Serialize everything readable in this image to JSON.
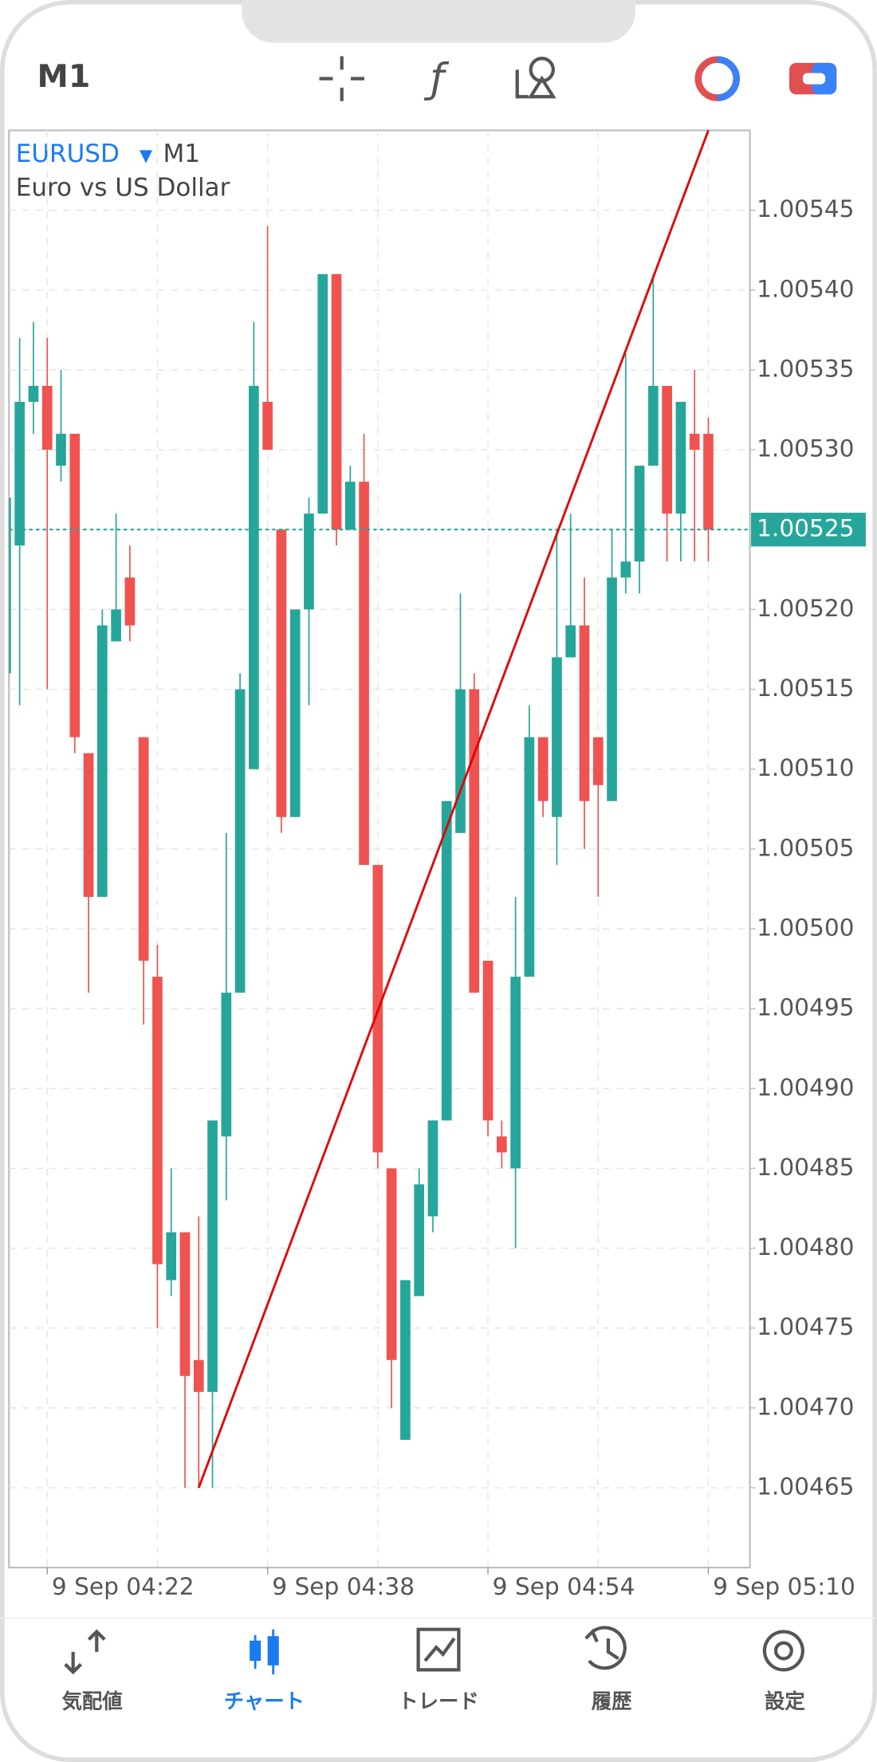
{
  "header": {
    "timeframe": "M1"
  },
  "chart_data": {
    "type": "candlestick",
    "symbol": "EURUSD",
    "timeframe": "M1",
    "description": "Euro vs US Dollar",
    "x": [
      "9 Sep 04:19",
      "9 Sep 04:20",
      "9 Sep 04:21",
      "9 Sep 04:22",
      "9 Sep 04:23",
      "9 Sep 04:24",
      "9 Sep 04:25",
      "9 Sep 04:26",
      "9 Sep 04:27",
      "9 Sep 04:28",
      "9 Sep 04:29",
      "9 Sep 04:30",
      "9 Sep 04:31",
      "9 Sep 04:32",
      "9 Sep 04:33",
      "9 Sep 04:34",
      "9 Sep 04:35",
      "9 Sep 04:36",
      "9 Sep 04:37",
      "9 Sep 04:38",
      "9 Sep 04:39",
      "9 Sep 04:40",
      "9 Sep 04:41",
      "9 Sep 04:42",
      "9 Sep 04:43",
      "9 Sep 04:44",
      "9 Sep 04:45",
      "9 Sep 04:46",
      "9 Sep 04:47",
      "9 Sep 04:48",
      "9 Sep 04:49",
      "9 Sep 04:50",
      "9 Sep 04:51",
      "9 Sep 04:52",
      "9 Sep 04:53",
      "9 Sep 04:54",
      "9 Sep 04:55",
      "9 Sep 04:56",
      "9 Sep 04:57",
      "9 Sep 04:58",
      "9 Sep 04:59",
      "9 Sep 05:00",
      "9 Sep 05:01",
      "9 Sep 05:02",
      "9 Sep 05:03",
      "9 Sep 05:04",
      "9 Sep 05:05",
      "9 Sep 05:06",
      "9 Sep 05:07",
      "9 Sep 05:08",
      "9 Sep 05:09",
      "9 Sep 05:10"
    ],
    "open": [
      1.00516,
      1.00524,
      1.00533,
      1.00534,
      1.00529,
      1.00531,
      1.00511,
      1.00502,
      1.00518,
      1.00522,
      1.00512,
      1.00497,
      1.00478,
      1.00481,
      1.00473,
      1.00471,
      1.00487,
      1.00496,
      1.0051,
      1.00533,
      1.00525,
      1.00507,
      1.0052,
      1.00526,
      1.00541,
      1.00525,
      1.00528,
      1.00504,
      1.00485,
      1.00468,
      1.00477,
      1.00482,
      1.00488,
      1.00506,
      1.00515,
      1.00498,
      1.00487,
      1.00485,
      1.00497,
      1.00512,
      1.00507,
      1.00517,
      1.00519,
      1.00512,
      1.00508,
      1.00522,
      1.00523,
      1.00529,
      1.00534,
      1.00526,
      1.00531,
      1.00531
    ],
    "high": [
      1.00528,
      1.00537,
      1.00538,
      1.00537,
      1.00535,
      1.00531,
      1.00511,
      1.0052,
      1.00526,
      1.00524,
      1.00512,
      1.00499,
      1.00485,
      1.00481,
      1.00482,
      1.00488,
      1.00506,
      1.00516,
      1.00538,
      1.00544,
      1.00525,
      1.0052,
      1.00527,
      1.00541,
      1.00541,
      1.00529,
      1.00531,
      1.00504,
      1.00485,
      1.00478,
      1.00485,
      1.00488,
      1.00508,
      1.00521,
      1.00516,
      1.00498,
      1.00488,
      1.00502,
      1.00514,
      1.00512,
      1.00525,
      1.00526,
      1.00522,
      1.00512,
      1.00525,
      1.00536,
      1.00529,
      1.00541,
      1.00534,
      1.00533,
      1.00535,
      1.00532
    ],
    "low": [
      1.00515,
      1.00514,
      1.00531,
      1.00515,
      1.00528,
      1.00511,
      1.00496,
      1.00502,
      1.00518,
      1.00518,
      1.00494,
      1.00475,
      1.00477,
      1.00465,
      1.00465,
      1.00465,
      1.00483,
      1.00496,
      1.0051,
      1.0053,
      1.00506,
      1.00507,
      1.00514,
      1.00526,
      1.00524,
      1.00525,
      1.00504,
      1.00485,
      1.0047,
      1.00468,
      1.00477,
      1.00481,
      1.00488,
      1.00506,
      1.00496,
      1.00487,
      1.00485,
      1.0048,
      1.00497,
      1.00507,
      1.00504,
      1.00517,
      1.00505,
      1.00502,
      1.00508,
      1.00521,
      1.00521,
      1.00529,
      1.00523,
      1.00523,
      1.00523,
      1.00523
    ],
    "close": [
      1.00527,
      1.00533,
      1.00534,
      1.0053,
      1.00531,
      1.00512,
      1.00502,
      1.00519,
      1.0052,
      1.00519,
      1.00498,
      1.00479,
      1.00481,
      1.00472,
      1.00471,
      1.00488,
      1.00496,
      1.00515,
      1.00534,
      1.0053,
      1.00507,
      1.0052,
      1.00526,
      1.00541,
      1.00525,
      1.00528,
      1.00504,
      1.00486,
      1.00473,
      1.00478,
      1.00484,
      1.00488,
      1.00508,
      1.00515,
      1.00496,
      1.00488,
      1.00486,
      1.00497,
      1.00512,
      1.00508,
      1.00517,
      1.00519,
      1.00508,
      1.00509,
      1.00522,
      1.00523,
      1.00529,
      1.00534,
      1.00526,
      1.00533,
      1.0053,
      1.00525
    ],
    "up_color": "#26a69a",
    "down_color": "#ef5350",
    "current_price": 1.00525,
    "trend_line": {
      "x": [
        "9 Sep 04:33",
        "9 Sep 05:10"
      ],
      "y": [
        1.00465,
        1.0055
      ],
      "color": "#e00000"
    },
    "ylim": [
      1.0046,
      1.0055
    ],
    "yticks": [
      1.00465,
      {
        "value": 1.0047,
        "label": "1.00470"
      },
      1.00475,
      {
        "value": 1.0048,
        "label": "1.00480"
      },
      1.00485,
      {
        "value": 1.0049,
        "label": "1.00490"
      },
      1.00495,
      {
        "value": 1.005,
        "label": "1.00500"
      },
      1.00505,
      {
        "value": 1.0051,
        "label": "1.00510"
      },
      1.00515,
      {
        "value": 1.0052,
        "label": "1.00520"
      },
      1.00525,
      {
        "value": 1.0053,
        "label": "1.00530"
      },
      1.00535,
      {
        "value": 1.0054,
        "label": "1.00540"
      },
      1.00545
    ],
    "xticks": [
      "9 Sep 04:22",
      "9 Sep 04:38",
      "9 Sep 04:54",
      "9 Sep 05:10"
    ],
    "grid": true
  },
  "tabs": [
    {
      "label": "気配値"
    },
    {
      "label": "チャート"
    },
    {
      "label": "トレード"
    },
    {
      "label": "履歴"
    },
    {
      "label": "設定"
    }
  ]
}
